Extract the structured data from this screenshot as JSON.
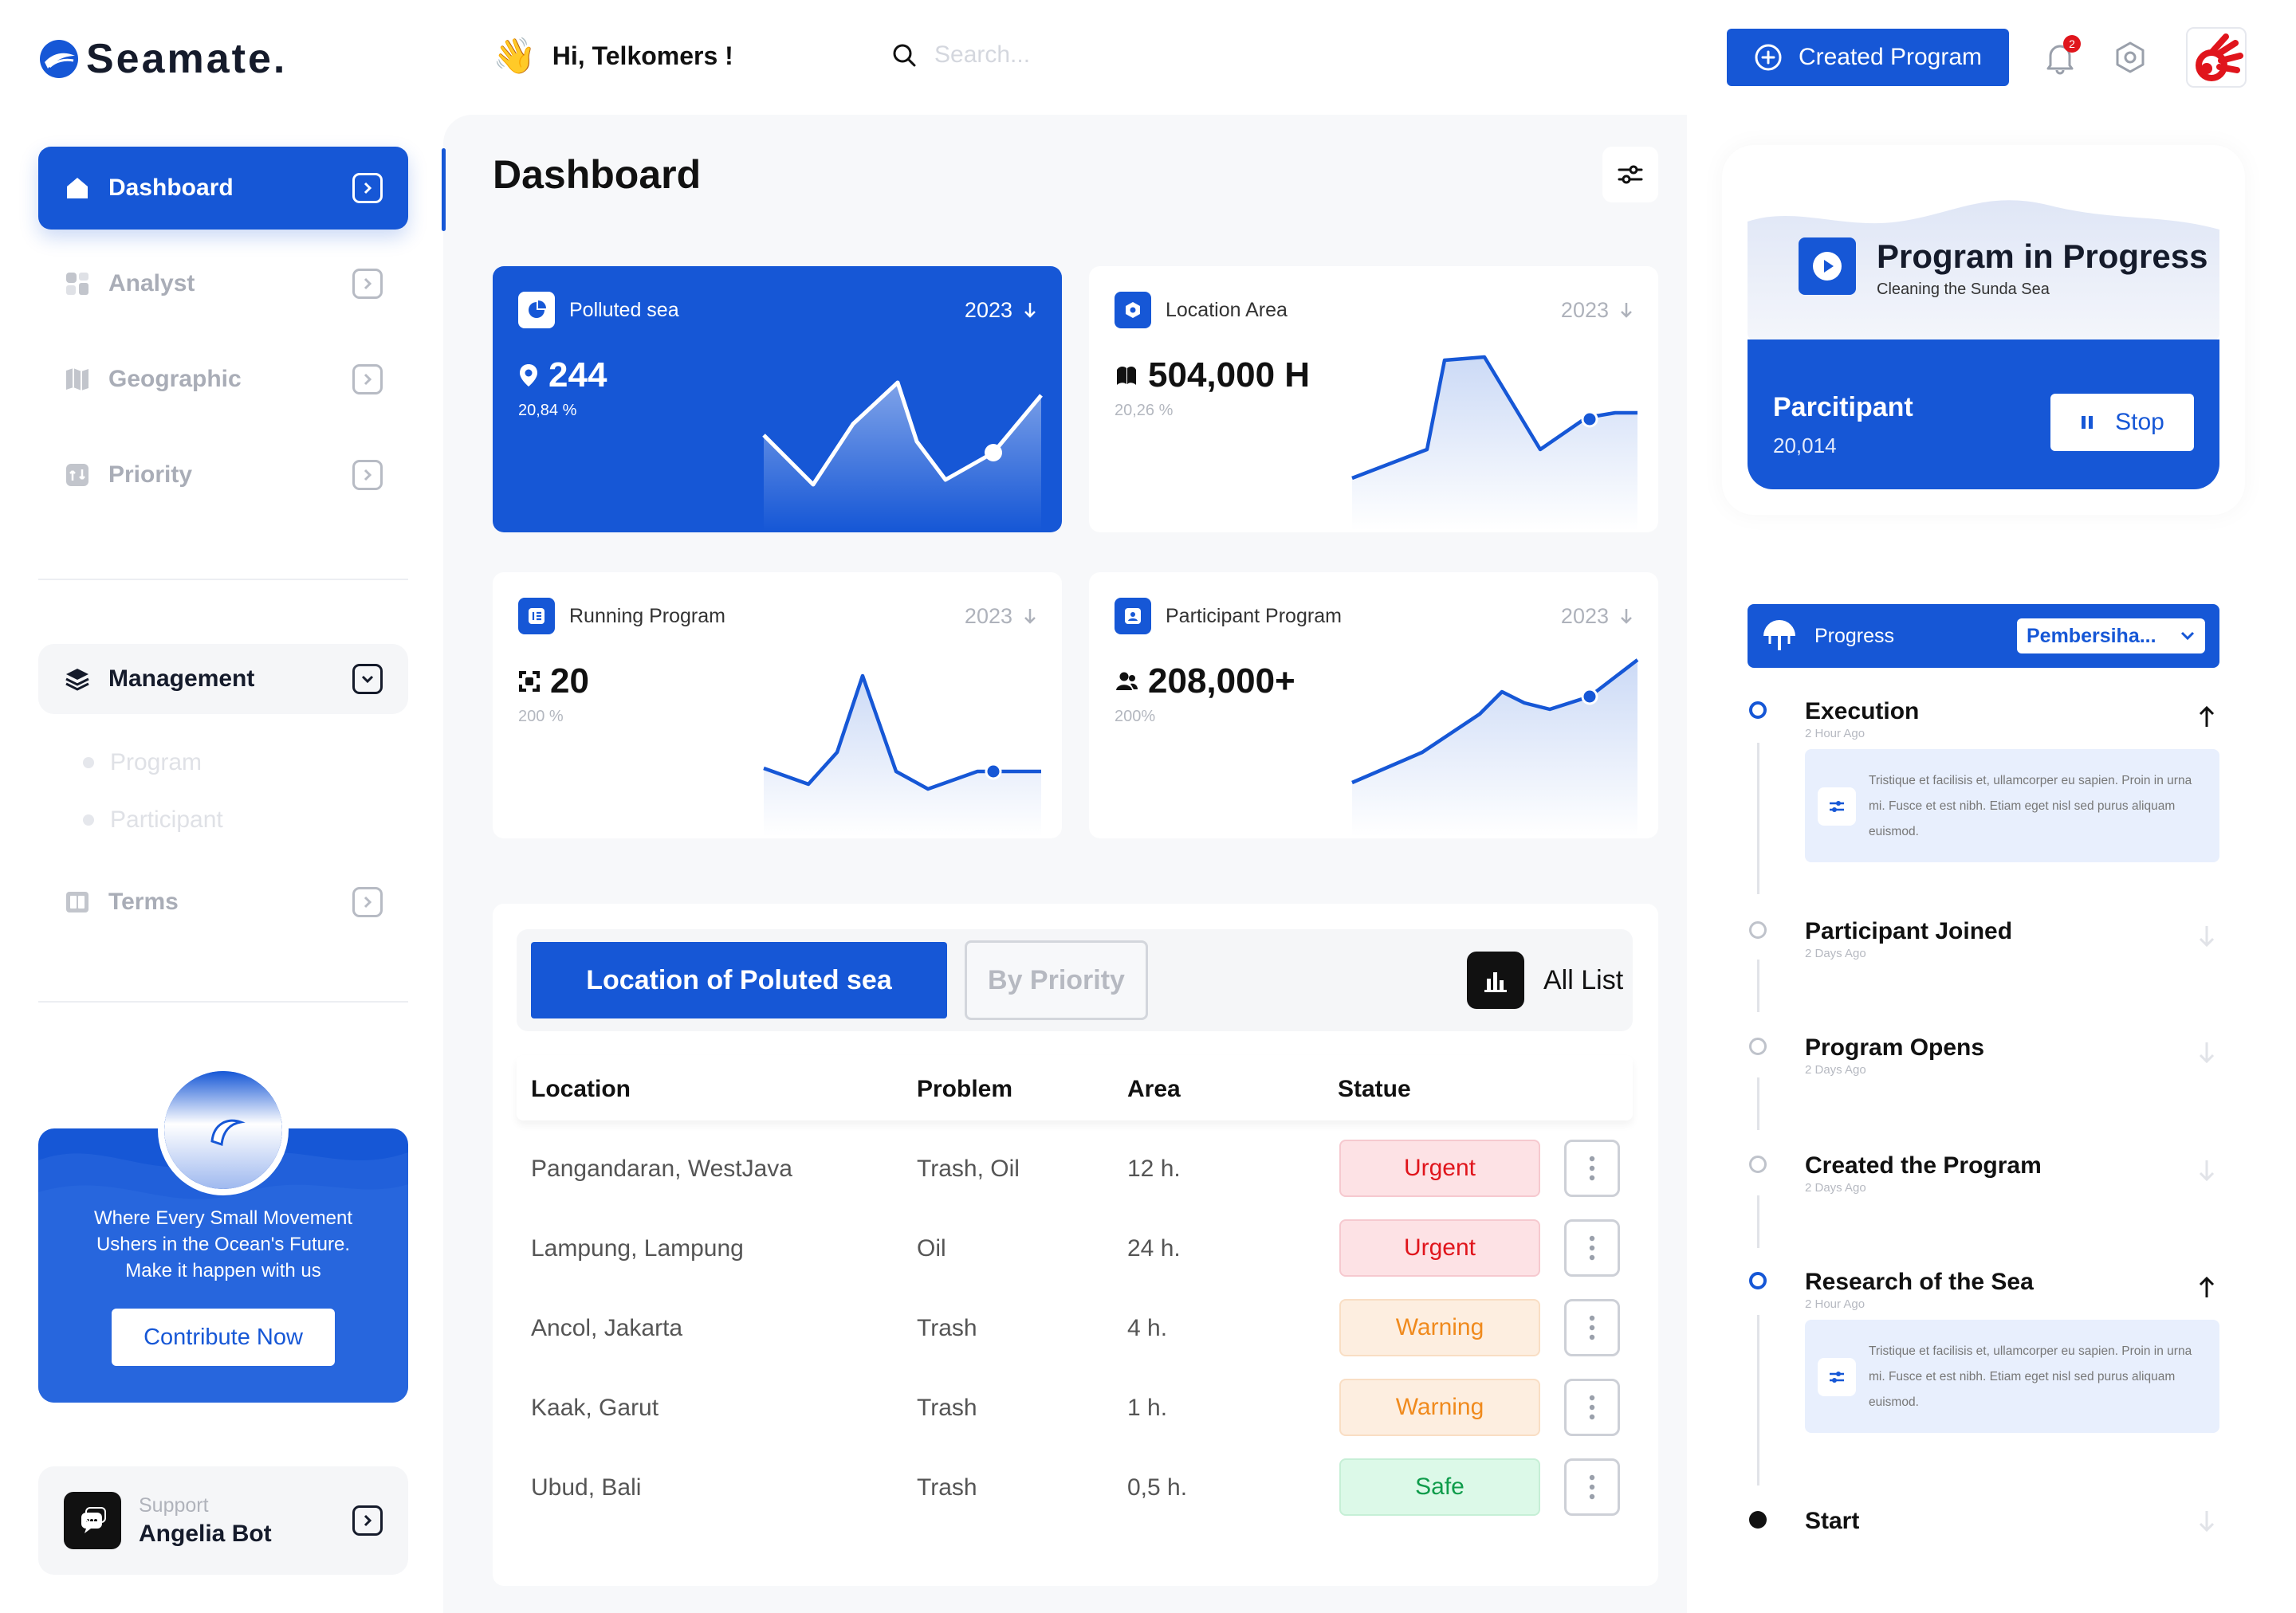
{
  "brand": {
    "name": "Seamate."
  },
  "header": {
    "greeting": "Hi, Telkomers !",
    "search_placeholder": "Search...",
    "create_label": "Created Program",
    "notification_count": "2"
  },
  "sidebar": {
    "items": [
      {
        "label": "Dashboard",
        "icon": "home-icon"
      },
      {
        "label": "Analyst",
        "icon": "analyst-icon"
      },
      {
        "label": "Geographic",
        "icon": "geographic-icon"
      },
      {
        "label": "Priority",
        "icon": "priority-icon"
      }
    ],
    "management": {
      "label": "Management",
      "sub": [
        "Program",
        "Participant"
      ]
    },
    "terms": "Terms",
    "promo": {
      "line1": "Where Every Small Movement",
      "line2": "Ushers in the Ocean's Future.",
      "line3": "Make it happen with us",
      "button": "Contribute Now"
    },
    "support": {
      "label": "Support",
      "name": "Angelia Bot"
    }
  },
  "main": {
    "title": "Dashboard",
    "cards": [
      {
        "title": "Polluted sea",
        "year": "2023",
        "value": "244",
        "pct": "20,84 %"
      },
      {
        "title": "Location Area",
        "year": "2023",
        "value": "504,000 H",
        "pct": "20,26 %"
      },
      {
        "title": "Running Program",
        "year": "2023",
        "value": "20",
        "pct": "200 %"
      },
      {
        "title": "Participant Program",
        "year": "2023",
        "value": "208,000+",
        "pct": "200%"
      }
    ],
    "table": {
      "tab_active": "Location of Poluted sea",
      "tab_inactive": "By Priority",
      "all_list": "All List",
      "headers": [
        "Location",
        "Problem",
        "Area",
        "Statue"
      ],
      "rows": [
        {
          "location": "Pangandaran, WestJava",
          "problem": "Trash, Oil",
          "area": "12 h.",
          "status": "Urgent"
        },
        {
          "location": "Lampung, Lampung",
          "problem": "Oil",
          "area": "24 h.",
          "status": "Urgent"
        },
        {
          "location": "Ancol, Jakarta",
          "problem": "Trash",
          "area": "4 h.",
          "status": "Warning"
        },
        {
          "location": "Kaak, Garut",
          "problem": "Trash",
          "area": "1 h.",
          "status": "Warning"
        },
        {
          "location": "Ubud, Bali",
          "problem": "Trash",
          "area": "0,5 h.",
          "status": "Safe"
        }
      ]
    }
  },
  "program": {
    "title": "Program in Progress",
    "subtitle": "Cleaning the Sunda Sea",
    "participant_label": "Parcitipant",
    "participant_value": "20,014",
    "stop_label": "Stop"
  },
  "progress": {
    "label": "Progress",
    "select": "Pembersiha...",
    "steps": [
      {
        "title": "Execution",
        "time": "2 Hour Ago",
        "note": "Tristique et facilisis et, ullamcorper eu sapien. Proin in urna mi. Fusce et est nibh. Etiam eget nisl sed purus aliquam euismod."
      },
      {
        "title": "Participant Joined",
        "time": "2 Days Ago"
      },
      {
        "title": "Program Opens",
        "time": "2 Days Ago"
      },
      {
        "title": "Created the Program",
        "time": "2 Days Ago"
      },
      {
        "title": "Research of the Sea",
        "time": "2 Hour Ago",
        "note": "Tristique et facilisis et, ullamcorper eu sapien. Proin in urna mi. Fusce et est nibh. Etiam eget nisl sed purus aliquam euismod."
      },
      {
        "title": "Start"
      }
    ]
  },
  "colors": {
    "accent": "#1657d6",
    "urgent": "#e0151c",
    "warning": "#f08a1d",
    "safe": "#0f9c4b"
  }
}
